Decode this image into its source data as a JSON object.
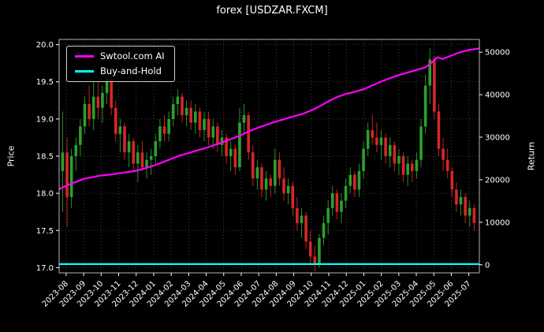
{
  "chart_data": {
    "type": "candlestick+line",
    "title": "forex [USDZAR.FXCM]",
    "ylabel_left": "Price",
    "ylabel_right": "Return",
    "grid": true,
    "x_ticklabels": [
      "2023-08",
      "2023-09",
      "2023-10",
      "2023-11",
      "2023-12",
      "2024-01",
      "2024-02",
      "2024-03",
      "2024-04",
      "2024-05",
      "2024-06",
      "2024-07",
      "2024-08",
      "2024-09",
      "2024-10",
      "2024-11",
      "2024-12",
      "2025-01",
      "2025-02",
      "2025-03",
      "2025-04",
      "2025-05",
      "2025-06",
      "2025-07"
    ],
    "y_left_ticks": [
      17.0,
      17.5,
      18.0,
      18.5,
      19.0,
      19.5,
      20.0
    ],
    "y_left_ticklabels": [
      "17.0",
      "17.5",
      "18.0",
      "18.5",
      "19.0",
      "19.5",
      "20.0"
    ],
    "y_right_ticks": [
      0,
      10000,
      20000,
      30000,
      40000,
      50000
    ],
    "y_right_ticklabels": [
      "0",
      "10000",
      "20000",
      "30000",
      "40000",
      "50000"
    ],
    "ylim_left": [
      16.93,
      20.07
    ],
    "ylim_right": [
      -1900,
      53000
    ],
    "xlim_months": [
      -0.4,
      23.6
    ],
    "x_start": -0.2,
    "x_step": 0.2527,
    "colors": {
      "background": "#000000",
      "text": "#ffffff",
      "grid": "#4d4d4d",
      "frame": "#b3b3b3",
      "up": "#2ca02c",
      "down": "#d62728"
    },
    "legend": {
      "position": "upper left",
      "entries": [
        {
          "label": "Swtool.com AI",
          "color": "#ff00ff"
        },
        {
          "label": "Buy-and-Hold",
          "color": "#00ffff"
        }
      ]
    },
    "candles": [
      [
        18.3,
        19.1,
        17.75,
        18.55
      ],
      [
        18.55,
        18.75,
        17.55,
        17.95
      ],
      [
        17.95,
        18.6,
        17.8,
        18.5
      ],
      [
        18.5,
        18.75,
        18.3,
        18.65
      ],
      [
        18.65,
        19.0,
        18.5,
        18.9
      ],
      [
        18.9,
        19.3,
        18.8,
        19.2
      ],
      [
        19.2,
        19.45,
        18.9,
        19.0
      ],
      [
        19.0,
        19.5,
        18.85,
        19.3
      ],
      [
        19.3,
        19.55,
        19.0,
        19.15
      ],
      [
        19.15,
        19.45,
        18.95,
        19.35
      ],
      [
        19.35,
        19.7,
        19.2,
        19.55
      ],
      [
        19.55,
        19.65,
        19.05,
        19.15
      ],
      [
        19.15,
        19.25,
        18.7,
        18.8
      ],
      [
        18.8,
        19.0,
        18.55,
        18.9
      ],
      [
        18.9,
        18.95,
        18.45,
        18.55
      ],
      [
        18.55,
        18.8,
        18.35,
        18.7
      ],
      [
        18.7,
        18.75,
        18.3,
        18.4
      ],
      [
        18.4,
        18.65,
        18.15,
        18.55
      ],
      [
        18.55,
        18.7,
        18.3,
        18.35
      ],
      [
        18.35,
        18.55,
        18.2,
        18.45
      ],
      [
        18.45,
        18.6,
        18.25,
        18.5
      ],
      [
        18.5,
        18.8,
        18.4,
        18.7
      ],
      [
        18.7,
        19.0,
        18.6,
        18.9
      ],
      [
        18.9,
        19.05,
        18.7,
        18.8
      ],
      [
        18.8,
        19.1,
        18.7,
        19.0
      ],
      [
        19.0,
        19.3,
        18.9,
        19.2
      ],
      [
        19.2,
        19.4,
        19.05,
        19.3
      ],
      [
        19.3,
        19.35,
        18.95,
        19.05
      ],
      [
        19.05,
        19.25,
        18.9,
        19.15
      ],
      [
        19.15,
        19.25,
        18.85,
        18.95
      ],
      [
        18.95,
        19.2,
        18.8,
        19.1
      ],
      [
        19.1,
        19.15,
        18.75,
        18.85
      ],
      [
        18.85,
        19.1,
        18.7,
        19.0
      ],
      [
        19.0,
        19.1,
        18.65,
        18.75
      ],
      [
        18.75,
        19.0,
        18.6,
        18.9
      ],
      [
        18.9,
        18.95,
        18.55,
        18.65
      ],
      [
        18.65,
        18.85,
        18.5,
        18.75
      ],
      [
        18.75,
        18.8,
        18.4,
        18.5
      ],
      [
        18.5,
        18.7,
        18.3,
        18.6
      ],
      [
        18.6,
        18.65,
        18.25,
        18.35
      ],
      [
        18.35,
        19.15,
        18.3,
        18.95
      ],
      [
        18.95,
        19.2,
        18.8,
        19.05
      ],
      [
        19.05,
        19.1,
        18.45,
        18.55
      ],
      [
        18.55,
        18.65,
        18.1,
        18.2
      ],
      [
        18.2,
        18.45,
        18.05,
        18.35
      ],
      [
        18.35,
        18.4,
        17.95,
        18.05
      ],
      [
        18.05,
        18.3,
        17.9,
        18.2
      ],
      [
        18.2,
        18.25,
        17.95,
        18.1
      ],
      [
        18.1,
        18.6,
        18.0,
        18.45
      ],
      [
        18.45,
        18.55,
        18.1,
        18.2
      ],
      [
        18.2,
        18.35,
        17.9,
        18.0
      ],
      [
        18.0,
        18.2,
        17.85,
        18.1
      ],
      [
        18.1,
        18.15,
        17.7,
        17.8
      ],
      [
        17.8,
        17.95,
        17.5,
        17.6
      ],
      [
        17.6,
        17.8,
        17.4,
        17.7
      ],
      [
        17.7,
        17.75,
        17.25,
        17.35
      ],
      [
        17.35,
        17.5,
        17.05,
        17.15
      ],
      [
        17.15,
        17.3,
        16.95,
        17.05
      ],
      [
        17.05,
        17.45,
        17.0,
        17.4
      ],
      [
        17.4,
        17.7,
        17.3,
        17.6
      ],
      [
        17.6,
        17.9,
        17.45,
        17.8
      ],
      [
        17.8,
        18.1,
        17.7,
        18.0
      ],
      [
        18.0,
        18.05,
        17.65,
        17.75
      ],
      [
        17.75,
        18.0,
        17.6,
        17.9
      ],
      [
        17.9,
        18.2,
        17.8,
        18.1
      ],
      [
        18.1,
        18.35,
        18.0,
        18.25
      ],
      [
        18.25,
        18.3,
        17.95,
        18.05
      ],
      [
        18.05,
        18.4,
        17.95,
        18.3
      ],
      [
        18.3,
        18.7,
        18.2,
        18.6
      ],
      [
        18.6,
        18.95,
        18.5,
        18.85
      ],
      [
        18.85,
        19.05,
        18.65,
        18.75
      ],
      [
        18.75,
        18.95,
        18.55,
        18.65
      ],
      [
        18.65,
        18.85,
        18.45,
        18.75
      ],
      [
        18.75,
        18.8,
        18.4,
        18.5
      ],
      [
        18.5,
        18.75,
        18.35,
        18.65
      ],
      [
        18.65,
        18.7,
        18.3,
        18.4
      ],
      [
        18.4,
        18.6,
        18.25,
        18.5
      ],
      [
        18.5,
        18.55,
        18.15,
        18.25
      ],
      [
        18.25,
        18.5,
        18.1,
        18.4
      ],
      [
        18.4,
        18.45,
        18.15,
        18.3
      ],
      [
        18.3,
        18.55,
        18.2,
        18.45
      ],
      [
        18.45,
        19.0,
        18.35,
        18.9
      ],
      [
        18.9,
        19.6,
        18.8,
        19.45
      ],
      [
        19.45,
        19.95,
        19.2,
        19.8
      ],
      [
        19.8,
        19.85,
        19.0,
        19.1
      ],
      [
        19.1,
        19.2,
        18.5,
        18.6
      ],
      [
        18.6,
        18.75,
        18.3,
        18.45
      ],
      [
        18.45,
        18.6,
        18.2,
        18.3
      ],
      [
        18.3,
        18.35,
        17.95,
        18.05
      ],
      [
        18.05,
        18.15,
        17.75,
        17.85
      ],
      [
        17.85,
        18.05,
        17.7,
        17.95
      ],
      [
        17.95,
        18.0,
        17.6,
        17.7
      ],
      [
        17.7,
        17.9,
        17.55,
        17.8
      ],
      [
        17.8,
        17.85,
        17.5,
        17.6
      ]
    ],
    "series": [
      {
        "name": "Swtool.com AI",
        "axis": "right",
        "color": "#ff00ff",
        "points": [
          [
            -0.4,
            17800
          ],
          [
            0,
            18600
          ],
          [
            0.5,
            19400
          ],
          [
            1,
            20200
          ],
          [
            1.5,
            20600
          ],
          [
            2,
            21000
          ],
          [
            2.5,
            21200
          ],
          [
            3,
            21500
          ],
          [
            3.5,
            21800
          ],
          [
            4,
            22100
          ],
          [
            4.5,
            22700
          ],
          [
            5,
            23300
          ],
          [
            5.5,
            24100
          ],
          [
            6,
            24900
          ],
          [
            6.5,
            25700
          ],
          [
            7,
            26300
          ],
          [
            7.5,
            26900
          ],
          [
            8,
            27500
          ],
          [
            8.5,
            28200
          ],
          [
            9,
            28900
          ],
          [
            9.5,
            29700
          ],
          [
            10,
            30500
          ],
          [
            10.5,
            31500
          ],
          [
            11,
            32300
          ],
          [
            11.5,
            33000
          ],
          [
            12,
            33700
          ],
          [
            12.5,
            34300
          ],
          [
            13,
            34900
          ],
          [
            13.5,
            35500
          ],
          [
            14,
            36300
          ],
          [
            14.5,
            37300
          ],
          [
            15,
            38500
          ],
          [
            15.5,
            39500
          ],
          [
            16,
            40200
          ],
          [
            16.5,
            40700
          ],
          [
            17,
            41300
          ],
          [
            17.5,
            42200
          ],
          [
            18,
            43100
          ],
          [
            18.5,
            43900
          ],
          [
            19,
            44600
          ],
          [
            19.5,
            45200
          ],
          [
            20,
            45800
          ],
          [
            20.5,
            46400
          ],
          [
            20.9,
            47600
          ],
          [
            21.2,
            48800
          ],
          [
            21.5,
            48400
          ],
          [
            22,
            49200
          ],
          [
            22.5,
            50000
          ],
          [
            23,
            50500
          ],
          [
            23.6,
            50900
          ]
        ]
      },
      {
        "name": "Buy-and-Hold",
        "axis": "right",
        "color": "#00ffff",
        "points": [
          [
            -0.4,
            150
          ],
          [
            23.6,
            150
          ]
        ]
      }
    ]
  }
}
